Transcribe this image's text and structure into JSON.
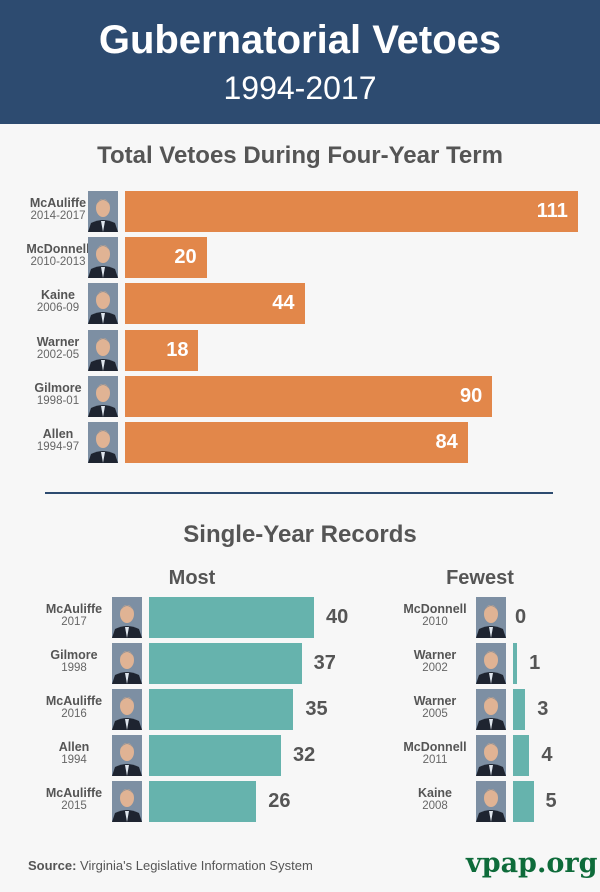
{
  "header": {
    "title": "Gubernatorial Vetoes",
    "subtitle": "1994-2017"
  },
  "chart_data": [
    {
      "type": "bar",
      "orientation": "horizontal",
      "title": "Total Vetoes During Four-Year Term",
      "color": "#e2874a",
      "categories": [
        {
          "name": "McAuliffe",
          "years": "2014-2017"
        },
        {
          "name": "McDonnell",
          "years": "2010-2013"
        },
        {
          "name": "Kaine",
          "years": "2006-09"
        },
        {
          "name": "Warner",
          "years": "2002-05"
        },
        {
          "name": "Gilmore",
          "years": "1998-01"
        },
        {
          "name": "Allen",
          "years": "1994-97"
        }
      ],
      "values": [
        111,
        20,
        44,
        18,
        90,
        84
      ]
    },
    {
      "type": "bar",
      "orientation": "horizontal",
      "title": "Most",
      "color": "#66b3ad",
      "categories": [
        {
          "name": "McAuliffe",
          "years": "2017"
        },
        {
          "name": "Gilmore",
          "years": "1998"
        },
        {
          "name": "McAuliffe",
          "years": "2016"
        },
        {
          "name": "Allen",
          "years": "1994"
        },
        {
          "name": "McAuliffe",
          "years": "2015"
        }
      ],
      "values": [
        40,
        37,
        35,
        32,
        26
      ]
    },
    {
      "type": "bar",
      "orientation": "horizontal",
      "title": "Fewest",
      "color": "#66b3ad",
      "categories": [
        {
          "name": "McDonnell",
          "years": "2010"
        },
        {
          "name": "Warner",
          "years": "2002"
        },
        {
          "name": "Warner",
          "years": "2005"
        },
        {
          "name": "McDonnell",
          "years": "2011"
        },
        {
          "name": "Kaine",
          "years": "2008"
        }
      ],
      "values": [
        0,
        1,
        3,
        4,
        5
      ]
    }
  ],
  "section2_title": "Single-Year Records",
  "footer": {
    "source_label": "Source:",
    "source_text": "Virginia's Legislative Information System",
    "logo": "vpap.org"
  }
}
